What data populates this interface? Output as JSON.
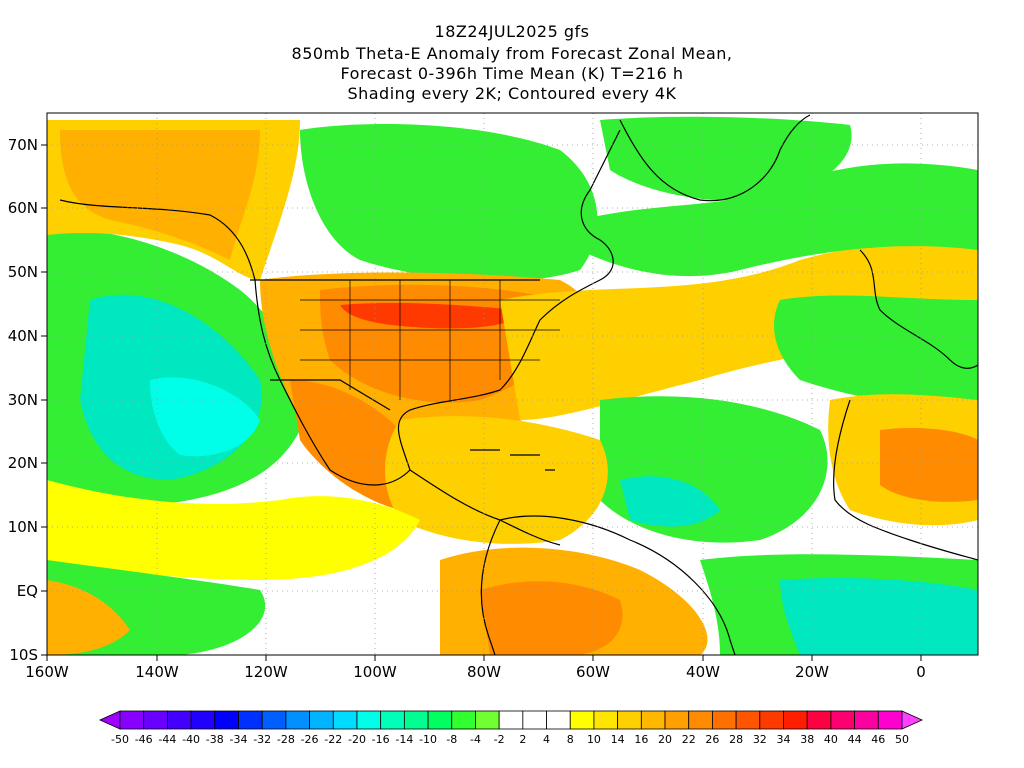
{
  "title_lines": [
    "18Z24JUL2025 gfs",
    "850mb Theta-E Anomaly from Forecast Zonal Mean,",
    "Forecast 0-396h Time Mean (K) T=216 h",
    "Shading every 2K; Contoured every 4K"
  ],
  "lat_labels": [
    "70N",
    "60N",
    "50N",
    "40N",
    "30N",
    "20N",
    "10N",
    "EQ",
    "10S"
  ],
  "lon_labels": [
    "160W",
    "140W",
    "120W",
    "100W",
    "80W",
    "60W",
    "40W",
    "20W",
    "0"
  ],
  "colorbar": {
    "labels": [
      "-50",
      "-46",
      "-44",
      "-40",
      "-38",
      "-34",
      "-32",
      "-28",
      "-26",
      "-22",
      "-20",
      "-16",
      "-14",
      "-10",
      "-8",
      "-4",
      "-2",
      "2",
      "4",
      "8",
      "10",
      "14",
      "16",
      "20",
      "22",
      "26",
      "28",
      "32",
      "34",
      "38",
      "40",
      "44",
      "46",
      "50"
    ],
    "colors": [
      "#a000ff",
      "#8800ff",
      "#6a00ff",
      "#4400ff",
      "#2200ff",
      "#0000ff",
      "#0030ff",
      "#0060ff",
      "#0090ff",
      "#00b4ff",
      "#00dcff",
      "#00ffe8",
      "#00ffb8",
      "#00ff90",
      "#00ff60",
      "#30ff30",
      "#70ff30",
      "#ffffff",
      "#ffffff",
      "#ffffff",
      "#ffff00",
      "#ffe600",
      "#ffd000",
      "#ffb800",
      "#ffa000",
      "#ff8c00",
      "#ff7000",
      "#ff5500",
      "#ff3a00",
      "#ff1e00",
      "#ff0040",
      "#ff0070",
      "#ff00a0",
      "#ff00d0",
      "#ff40ff"
    ]
  },
  "map_colors": {
    "green": "#33ee33",
    "teal": "#00e8c0",
    "lightgreen": "#66ff44",
    "yellow": "#ffff00",
    "gold": "#ffd000",
    "orange": "#ffb000",
    "darkorange": "#ff8c00",
    "red": "#ff3a00",
    "white": "#ffffff",
    "border": "#000000"
  }
}
